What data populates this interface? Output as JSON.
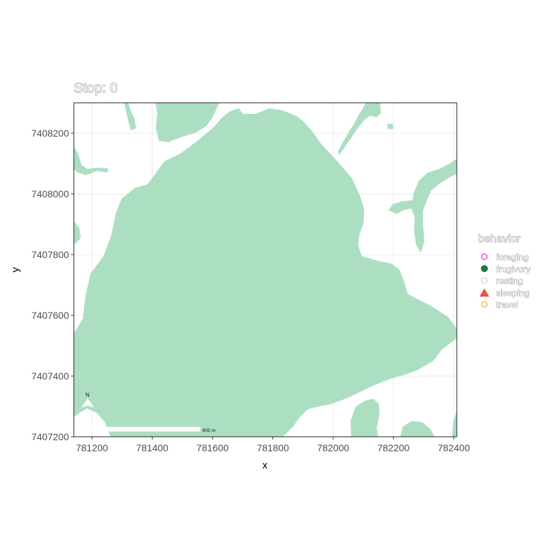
{
  "title": "Stop: 0",
  "map_data": {
    "type": "map",
    "xlabel": "x",
    "ylabel": "y",
    "xlim": [
      781140,
      782410
    ],
    "ylim": [
      7407200,
      7408300
    ],
    "x_ticks": [
      781200,
      781400,
      781600,
      781800,
      782000,
      782200,
      782400
    ],
    "y_ticks": [
      7407200,
      7407400,
      7407600,
      7407800,
      7408000,
      7408200
    ],
    "grid": true,
    "land_color": "#acdfc2",
    "background_color": "#ffffff",
    "scale_bar_label": "400 m",
    "north_arrow_label": "N"
  },
  "legend": {
    "title": "behavior",
    "placement": "right",
    "items": [
      {
        "label": "foraging",
        "color": "#cc00cc",
        "shape": "open-circle"
      },
      {
        "label": "frugivory",
        "color": "#1b7a45",
        "shape": "filled-circle"
      },
      {
        "label": "resting",
        "color": "#c8c8c8",
        "shape": "open-circle"
      },
      {
        "label": "sleeping",
        "color": "#e8524a",
        "shape": "filled-triangle"
      },
      {
        "label": "travel",
        "color": "#e8a500",
        "shape": "open-circle"
      }
    ]
  }
}
